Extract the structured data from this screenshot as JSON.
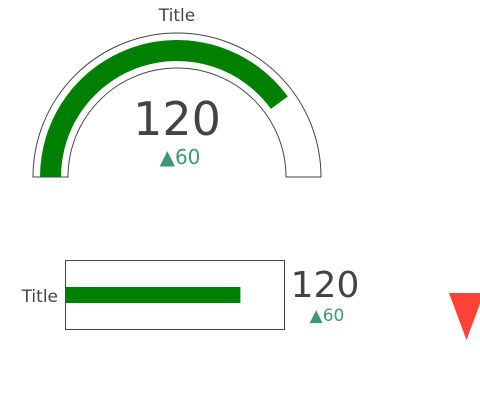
{
  "chart_data": [
    {
      "type": "gauge",
      "title": "Title",
      "value": 120,
      "delta": 60,
      "delta_display": "▲60",
      "range": [
        0,
        150
      ],
      "bar_color": "#008000",
      "delta_color": "#3d9970"
    },
    {
      "type": "bullet",
      "title": "Title",
      "value": 120,
      "delta": 60,
      "delta_display": "▲60",
      "range": [
        0,
        150
      ],
      "bar_color": "#008000",
      "delta_color": "#3d9970"
    },
    {
      "type": "delta-indicator",
      "direction": "down",
      "color": "#ff4136"
    }
  ]
}
